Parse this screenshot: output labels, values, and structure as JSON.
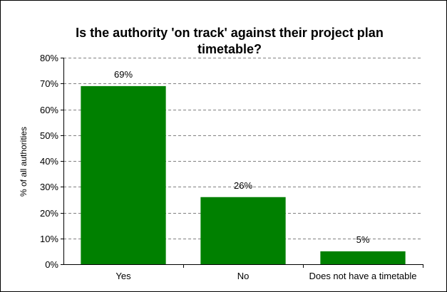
{
  "chart_data": {
    "type": "bar",
    "title_lines": [
      "Is the authority 'on track' against their project plan",
      "timetable?"
    ],
    "xlabel": "",
    "ylabel": "% of all authorities",
    "categories": [
      "Yes",
      "No",
      "Does not have a timetable"
    ],
    "values": [
      69,
      26,
      5
    ],
    "data_labels": [
      "69%",
      "26%",
      "5%"
    ],
    "ylim": [
      0,
      80
    ],
    "yticks": [
      0,
      10,
      20,
      30,
      40,
      50,
      60,
      70,
      80
    ],
    "ytick_labels": [
      "0%",
      "10%",
      "20%",
      "30%",
      "40%",
      "50%",
      "60%",
      "70%",
      "80%"
    ],
    "grid": "horizontal dashed",
    "legend": "none",
    "colors": {
      "bar": "#008000",
      "grid": "#808080",
      "axis": "#000000",
      "border": "#000000"
    }
  }
}
